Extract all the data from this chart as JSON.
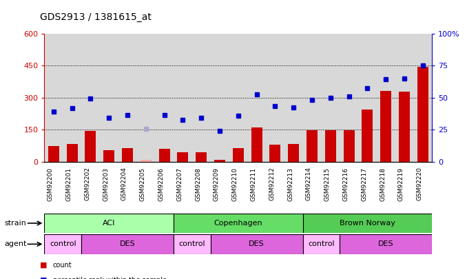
{
  "title": "GDS2913 / 1381615_at",
  "samples": [
    "GSM92200",
    "GSM92201",
    "GSM92202",
    "GSM92203",
    "GSM92204",
    "GSM92205",
    "GSM92206",
    "GSM92207",
    "GSM92208",
    "GSM92209",
    "GSM92210",
    "GSM92211",
    "GSM92212",
    "GSM92213",
    "GSM92214",
    "GSM92215",
    "GSM92216",
    "GSM92217",
    "GSM92218",
    "GSM92219",
    "GSM92220"
  ],
  "count_values": [
    75,
    85,
    145,
    55,
    65,
    10,
    60,
    45,
    45,
    10,
    65,
    160,
    80,
    85,
    148,
    148,
    148,
    245,
    330,
    328,
    445
  ],
  "count_absent": [
    false,
    false,
    false,
    false,
    false,
    true,
    false,
    false,
    false,
    false,
    false,
    false,
    false,
    false,
    false,
    false,
    false,
    false,
    false,
    false,
    false
  ],
  "rank_values": [
    235,
    250,
    295,
    205,
    220,
    155,
    220,
    195,
    205,
    145,
    215,
    315,
    260,
    255,
    290,
    300,
    305,
    345,
    385,
    390,
    450
  ],
  "rank_absent": [
    false,
    false,
    false,
    false,
    false,
    true,
    false,
    false,
    false,
    false,
    false,
    false,
    false,
    false,
    false,
    false,
    false,
    false,
    false,
    false,
    false
  ],
  "ylim_left": [
    0,
    600
  ],
  "ylim_right": [
    0,
    100
  ],
  "yticks_left": [
    0,
    150,
    300,
    450,
    600
  ],
  "yticks_right": [
    0,
    25,
    50,
    75,
    100
  ],
  "bar_color": "#cc0000",
  "bar_absent_color": "#ffaaaa",
  "dot_color": "#0000cc",
  "dot_absent_color": "#aaaacc",
  "strain_groups": [
    {
      "label": "ACI",
      "start": 0,
      "end": 6,
      "color": "#aaffaa"
    },
    {
      "label": "Copenhagen",
      "start": 7,
      "end": 13,
      "color": "#66dd66"
    },
    {
      "label": "Brown Norway",
      "start": 14,
      "end": 20,
      "color": "#55cc55"
    }
  ],
  "agent_groups": [
    {
      "label": "control",
      "start": 0,
      "end": 1,
      "color": "#ffbbff"
    },
    {
      "label": "DES",
      "start": 2,
      "end": 6,
      "color": "#dd66dd"
    },
    {
      "label": "control",
      "start": 7,
      "end": 8,
      "color": "#ffbbff"
    },
    {
      "label": "DES",
      "start": 9,
      "end": 13,
      "color": "#dd66dd"
    },
    {
      "label": "control",
      "start": 14,
      "end": 15,
      "color": "#ffbbff"
    },
    {
      "label": "DES",
      "start": 16,
      "end": 20,
      "color": "#dd66dd"
    }
  ],
  "bg_color": "#d8d8d8",
  "bar_width": 0.6
}
